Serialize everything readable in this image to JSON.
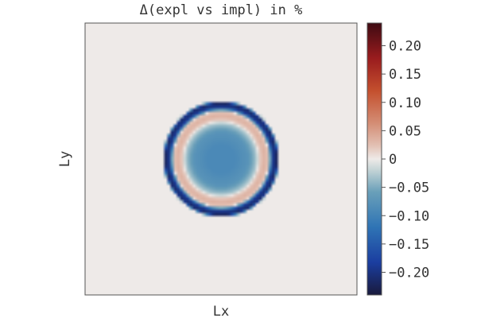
{
  "chart_data": {
    "type": "heatmap",
    "title": "Δ(expl vs impl) in %",
    "xlabel": "Lx",
    "ylabel": "Ly",
    "grid": false,
    "x_ticks": [],
    "y_ticks": [],
    "field": {
      "description_values": "radially symmetric difference field in % units",
      "background_value": 0.0,
      "center": [
        0.5,
        0.5
      ],
      "radial_profile": [
        {
          "r": 0.0,
          "value": -0.09
        },
        {
          "r": 0.05,
          "value": -0.09
        },
        {
          "r": 0.1,
          "value": -0.075
        },
        {
          "r": 0.13,
          "value": -0.03
        },
        {
          "r": 0.145,
          "value": 0.02
        },
        {
          "r": 0.16,
          "value": 0.035
        },
        {
          "r": 0.175,
          "value": 0.02
        },
        {
          "r": 0.19,
          "value": -0.19
        },
        {
          "r": 0.205,
          "value": -0.22
        },
        {
          "r": 0.215,
          "value": 0.0
        }
      ]
    },
    "colorbar": {
      "vmin": -0.24,
      "vmax": 0.24,
      "ticks": [
        {
          "value": 0.2,
          "label": "0.20"
        },
        {
          "value": 0.15,
          "label": "0.15"
        },
        {
          "value": 0.1,
          "label": "0.10"
        },
        {
          "value": 0.05,
          "label": "0.05"
        },
        {
          "value": 0.0,
          "label": "0"
        },
        {
          "value": -0.05,
          "label": "−0.05"
        },
        {
          "value": -0.1,
          "label": "−0.10"
        },
        {
          "value": -0.15,
          "label": "−0.15"
        },
        {
          "value": -0.2,
          "label": "−0.20"
        }
      ],
      "colormap": "balance",
      "stops": [
        {
          "pos": 0.0,
          "color": "#191a3c"
        },
        {
          "pos": 0.12,
          "color": "#1b3ea0"
        },
        {
          "pos": 0.25,
          "color": "#2f74b5"
        },
        {
          "pos": 0.38,
          "color": "#6aa0b9"
        },
        {
          "pos": 0.46,
          "color": "#c4d4d6"
        },
        {
          "pos": 0.5,
          "color": "#eeeae8"
        },
        {
          "pos": 0.55,
          "color": "#e2c0b3"
        },
        {
          "pos": 0.63,
          "color": "#d48e76"
        },
        {
          "pos": 0.75,
          "color": "#c4502e"
        },
        {
          "pos": 0.87,
          "color": "#9a1c1e"
        },
        {
          "pos": 1.0,
          "color": "#3e0a12"
        }
      ]
    }
  }
}
